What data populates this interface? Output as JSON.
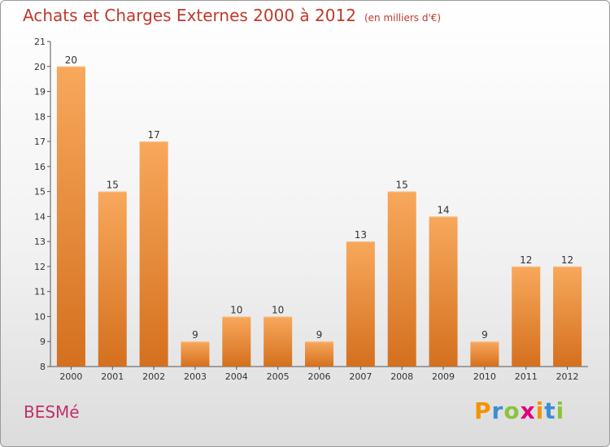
{
  "header": {
    "title": "Achats et Charges Externes 2000 à 2012",
    "subtitle": "(en milliers d'€)"
  },
  "footer": {
    "commune": "BESMé",
    "logo": {
      "text": "Proxiti",
      "letter_colors": [
        "#f29400",
        "#3a8fd4",
        "#8ac43f",
        "#e2007a",
        "#f29400",
        "#3a8fd4",
        "#8ac43f"
      ]
    }
  },
  "colors": {
    "bar_light": "#f8a85c",
    "bar_dark": "#d4701e",
    "title": "#c0392b",
    "commune": "#c0306a"
  },
  "chart_data": {
    "type": "bar",
    "title": "Achats et Charges Externes 2000 à 2012",
    "subtitle": "(en milliers d'€)",
    "categories": [
      "2000",
      "2001",
      "2002",
      "2003",
      "2004",
      "2005",
      "2006",
      "2007",
      "2008",
      "2009",
      "2010",
      "2011",
      "2012"
    ],
    "values": [
      20,
      15,
      17,
      9,
      10,
      10,
      9,
      13,
      15,
      14,
      9,
      12,
      12
    ],
    "xlabel": "",
    "ylabel": "",
    "ylim": [
      8,
      21
    ],
    "yticks": [
      8,
      9,
      10,
      11,
      12,
      13,
      14,
      15,
      16,
      17,
      18,
      19,
      20,
      21
    ],
    "grid": false,
    "data_labels": true
  }
}
